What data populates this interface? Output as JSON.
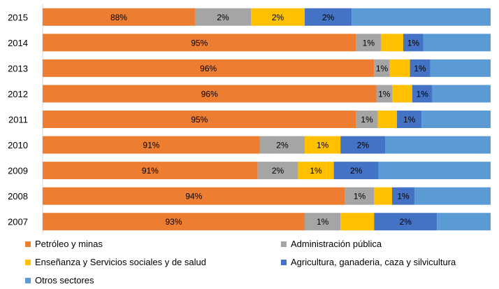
{
  "chart_data": {
    "type": "bar",
    "orientation": "horizontal",
    "stacked": true,
    "title": "",
    "xlabel": "",
    "ylabel": "",
    "categories": [
      "2015",
      "2014",
      "2013",
      "2012",
      "2011",
      "2010",
      "2009",
      "2008",
      "2007"
    ],
    "series": [
      {
        "name": "Petróleo y minas",
        "color": "#ED7D31",
        "values": [
          34,
          70,
          74,
          74.5,
          70,
          48.5,
          48,
          67.5,
          58.5
        ],
        "labels": [
          "88%",
          "95%",
          "96%",
          "96%",
          "95%",
          "91%",
          "91%",
          "94%",
          "93%"
        ]
      },
      {
        "name": "Administración pública",
        "color": "#A5A5A5",
        "values": [
          12.5,
          5.5,
          3.5,
          3.5,
          4.8,
          10,
          9,
          6.5,
          8
        ],
        "labels": [
          "2%",
          "1%",
          "1%",
          "1%",
          "1%",
          "2%",
          "2%",
          "1%",
          "1%"
        ]
      },
      {
        "name": "Enseñanza  y Servicios sociales y de salud",
        "color": "#FFC000",
        "values": [
          12,
          5,
          4.5,
          4.5,
          4.3,
          8,
          8,
          4,
          7.5
        ],
        "labels": [
          "2%",
          "",
          "",
          "",
          "",
          "1%",
          "1%",
          "",
          ""
        ]
      },
      {
        "name": "Agricultura, ganaderia, caza y silvicultura",
        "color": "#4472C4",
        "values": [
          10.5,
          4.5,
          4.5,
          4.5,
          5.5,
          10,
          10,
          5,
          14
        ],
        "labels": [
          "2%",
          "1%",
          "1%",
          "1%",
          "1%",
          "2%",
          "2%",
          "1%",
          "2%"
        ]
      },
      {
        "name": "Otros sectores",
        "color": "#5B9BD5",
        "values": [
          31,
          15,
          13.5,
          13,
          15.4,
          23.5,
          25,
          17,
          12
        ],
        "labels": [
          "",
          "",
          "",
          "",
          "",
          "",
          "",
          "",
          ""
        ]
      }
    ],
    "xlim": [
      0,
      100
    ],
    "grid": false,
    "legend_position": "bottom"
  }
}
